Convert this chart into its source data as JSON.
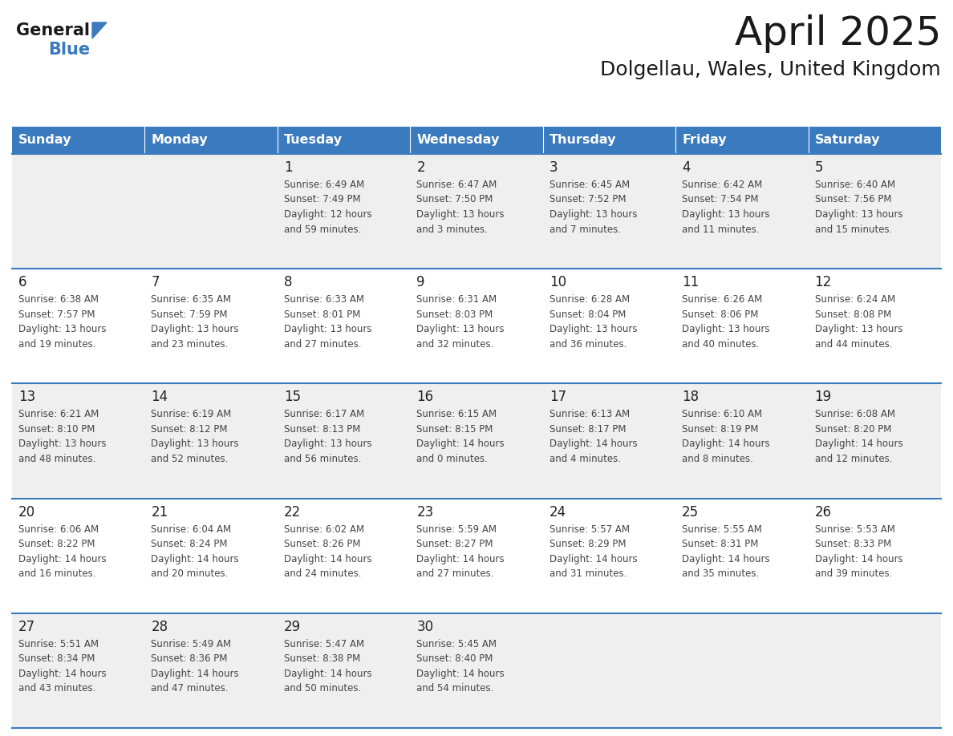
{
  "title": "April 2025",
  "subtitle": "Dolgellau, Wales, United Kingdom",
  "header_color": "#3a7abf",
  "header_text_color": "#ffffff",
  "cell_bg_odd": "#efefef",
  "cell_bg_even": "#ffffff",
  "day_num_color": "#222222",
  "info_text_color": "#444444",
  "border_color": "#3a7abf",
  "logo_general_color": "#1a1a1a",
  "logo_blue_color": "#3a7abf",
  "logo_triangle_color": "#3a7abf",
  "title_color": "#1a1a1a",
  "subtitle_color": "#1a1a1a",
  "day_names": [
    "Sunday",
    "Monday",
    "Tuesday",
    "Wednesday",
    "Thursday",
    "Friday",
    "Saturday"
  ],
  "weeks": [
    [
      {
        "day": "",
        "info": ""
      },
      {
        "day": "",
        "info": ""
      },
      {
        "day": "1",
        "info": "Sunrise: 6:49 AM\nSunset: 7:49 PM\nDaylight: 12 hours\nand 59 minutes."
      },
      {
        "day": "2",
        "info": "Sunrise: 6:47 AM\nSunset: 7:50 PM\nDaylight: 13 hours\nand 3 minutes."
      },
      {
        "day": "3",
        "info": "Sunrise: 6:45 AM\nSunset: 7:52 PM\nDaylight: 13 hours\nand 7 minutes."
      },
      {
        "day": "4",
        "info": "Sunrise: 6:42 AM\nSunset: 7:54 PM\nDaylight: 13 hours\nand 11 minutes."
      },
      {
        "day": "5",
        "info": "Sunrise: 6:40 AM\nSunset: 7:56 PM\nDaylight: 13 hours\nand 15 minutes."
      }
    ],
    [
      {
        "day": "6",
        "info": "Sunrise: 6:38 AM\nSunset: 7:57 PM\nDaylight: 13 hours\nand 19 minutes."
      },
      {
        "day": "7",
        "info": "Sunrise: 6:35 AM\nSunset: 7:59 PM\nDaylight: 13 hours\nand 23 minutes."
      },
      {
        "day": "8",
        "info": "Sunrise: 6:33 AM\nSunset: 8:01 PM\nDaylight: 13 hours\nand 27 minutes."
      },
      {
        "day": "9",
        "info": "Sunrise: 6:31 AM\nSunset: 8:03 PM\nDaylight: 13 hours\nand 32 minutes."
      },
      {
        "day": "10",
        "info": "Sunrise: 6:28 AM\nSunset: 8:04 PM\nDaylight: 13 hours\nand 36 minutes."
      },
      {
        "day": "11",
        "info": "Sunrise: 6:26 AM\nSunset: 8:06 PM\nDaylight: 13 hours\nand 40 minutes."
      },
      {
        "day": "12",
        "info": "Sunrise: 6:24 AM\nSunset: 8:08 PM\nDaylight: 13 hours\nand 44 minutes."
      }
    ],
    [
      {
        "day": "13",
        "info": "Sunrise: 6:21 AM\nSunset: 8:10 PM\nDaylight: 13 hours\nand 48 minutes."
      },
      {
        "day": "14",
        "info": "Sunrise: 6:19 AM\nSunset: 8:12 PM\nDaylight: 13 hours\nand 52 minutes."
      },
      {
        "day": "15",
        "info": "Sunrise: 6:17 AM\nSunset: 8:13 PM\nDaylight: 13 hours\nand 56 minutes."
      },
      {
        "day": "16",
        "info": "Sunrise: 6:15 AM\nSunset: 8:15 PM\nDaylight: 14 hours\nand 0 minutes."
      },
      {
        "day": "17",
        "info": "Sunrise: 6:13 AM\nSunset: 8:17 PM\nDaylight: 14 hours\nand 4 minutes."
      },
      {
        "day": "18",
        "info": "Sunrise: 6:10 AM\nSunset: 8:19 PM\nDaylight: 14 hours\nand 8 minutes."
      },
      {
        "day": "19",
        "info": "Sunrise: 6:08 AM\nSunset: 8:20 PM\nDaylight: 14 hours\nand 12 minutes."
      }
    ],
    [
      {
        "day": "20",
        "info": "Sunrise: 6:06 AM\nSunset: 8:22 PM\nDaylight: 14 hours\nand 16 minutes."
      },
      {
        "day": "21",
        "info": "Sunrise: 6:04 AM\nSunset: 8:24 PM\nDaylight: 14 hours\nand 20 minutes."
      },
      {
        "day": "22",
        "info": "Sunrise: 6:02 AM\nSunset: 8:26 PM\nDaylight: 14 hours\nand 24 minutes."
      },
      {
        "day": "23",
        "info": "Sunrise: 5:59 AM\nSunset: 8:27 PM\nDaylight: 14 hours\nand 27 minutes."
      },
      {
        "day": "24",
        "info": "Sunrise: 5:57 AM\nSunset: 8:29 PM\nDaylight: 14 hours\nand 31 minutes."
      },
      {
        "day": "25",
        "info": "Sunrise: 5:55 AM\nSunset: 8:31 PM\nDaylight: 14 hours\nand 35 minutes."
      },
      {
        "day": "26",
        "info": "Sunrise: 5:53 AM\nSunset: 8:33 PM\nDaylight: 14 hours\nand 39 minutes."
      }
    ],
    [
      {
        "day": "27",
        "info": "Sunrise: 5:51 AM\nSunset: 8:34 PM\nDaylight: 14 hours\nand 43 minutes."
      },
      {
        "day": "28",
        "info": "Sunrise: 5:49 AM\nSunset: 8:36 PM\nDaylight: 14 hours\nand 47 minutes."
      },
      {
        "day": "29",
        "info": "Sunrise: 5:47 AM\nSunset: 8:38 PM\nDaylight: 14 hours\nand 50 minutes."
      },
      {
        "day": "30",
        "info": "Sunrise: 5:45 AM\nSunset: 8:40 PM\nDaylight: 14 hours\nand 54 minutes."
      },
      {
        "day": "",
        "info": ""
      },
      {
        "day": "",
        "info": ""
      },
      {
        "day": "",
        "info": ""
      }
    ]
  ]
}
